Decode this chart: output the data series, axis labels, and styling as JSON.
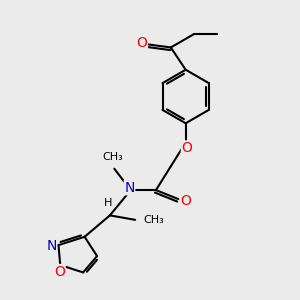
{
  "bg_color": "#ebebeb",
  "bond_color": "#000000",
  "bond_width": 1.5,
  "atom_colors": {
    "O": "#ff0000",
    "N": "#0000cc",
    "C": "#000000",
    "H": "#555555"
  },
  "font_size": 9,
  "fig_size": [
    3.0,
    3.0
  ],
  "dpi": 100,
  "xlim": [
    0,
    10
  ],
  "ylim": [
    0,
    10
  ]
}
